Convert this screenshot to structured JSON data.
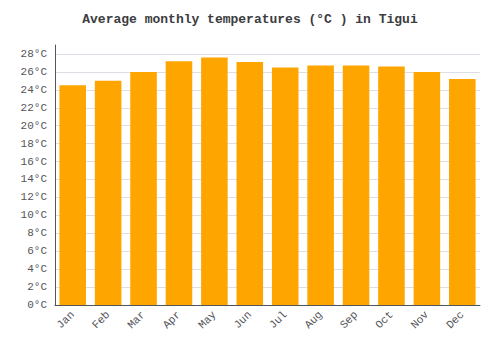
{
  "chart_data": {
    "type": "bar",
    "title": "Average monthly temperatures (°C ) in Tigui",
    "categories": [
      "Jan",
      "Feb",
      "Mar",
      "Apr",
      "May",
      "Jun",
      "Jul",
      "Aug",
      "Sep",
      "Oct",
      "Nov",
      "Dec"
    ],
    "values": [
      24.5,
      25.0,
      26.0,
      27.2,
      27.6,
      27.1,
      26.5,
      26.7,
      26.7,
      26.6,
      26.0,
      25.2
    ],
    "color": "#FFA500",
    "ylim": [
      0,
      29
    ],
    "yticks": [
      {
        "value": 0,
        "label": "0°C"
      },
      {
        "value": 2,
        "label": "2°C"
      },
      {
        "value": 4,
        "label": "4°C"
      },
      {
        "value": 6,
        "label": "6°C"
      },
      {
        "value": 8,
        "label": "8°C"
      },
      {
        "value": 10,
        "label": "10°C"
      },
      {
        "value": 12,
        "label": "12°C"
      },
      {
        "value": 14,
        "label": "14°C"
      },
      {
        "value": 16,
        "label": "16°C"
      },
      {
        "value": 18,
        "label": "18°C"
      },
      {
        "value": 20,
        "label": "20°C"
      },
      {
        "value": 22,
        "label": "22°C"
      },
      {
        "value": 24,
        "label": "24°C"
      },
      {
        "value": 26,
        "label": "26°C"
      },
      {
        "value": 28,
        "label": "28°C"
      }
    ],
    "grid": true
  }
}
